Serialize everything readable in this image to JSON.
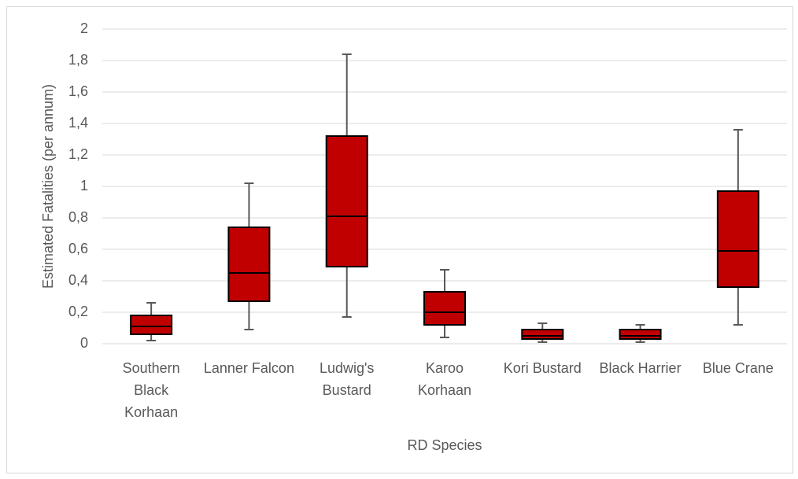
{
  "chart_data": {
    "type": "box",
    "y_label": "Estimated Fatalities (per annum)",
    "x_label": "RD Species",
    "categories": [
      "Southern Black Korhaan",
      "Lanner Falcon",
      "Ludwig's Bustard",
      "Karoo Korhaan",
      "Kori Bustard",
      "Black Harrier",
      "Blue Crane"
    ],
    "boxes": [
      {
        "min": 0.02,
        "q1": 0.06,
        "median": 0.11,
        "q3": 0.18,
        "max": 0.26
      },
      {
        "min": 0.09,
        "q1": 0.27,
        "median": 0.45,
        "q3": 0.74,
        "max": 1.02
      },
      {
        "min": 0.17,
        "q1": 0.49,
        "median": 0.81,
        "q3": 1.32,
        "max": 1.84
      },
      {
        "min": 0.04,
        "q1": 0.12,
        "median": 0.2,
        "q3": 0.33,
        "max": 0.47
      },
      {
        "min": 0.01,
        "q1": 0.03,
        "median": 0.05,
        "q3": 0.09,
        "max": 0.13
      },
      {
        "min": 0.01,
        "q1": 0.03,
        "median": 0.05,
        "q3": 0.09,
        "max": 0.12
      },
      {
        "min": 0.12,
        "q1": 0.36,
        "median": 0.59,
        "q3": 0.97,
        "max": 1.36
      }
    ],
    "color": "#c00000",
    "ylim": [
      0,
      2
    ],
    "yticks": [
      0,
      {
        "value": 0.2,
        "label": "0,2"
      },
      {
        "value": 0.4,
        "label": "0,4"
      },
      {
        "value": 0.6,
        "label": "0,6"
      },
      {
        "value": 0.8,
        "label": "0,8"
      },
      1,
      {
        "value": 1.2,
        "label": "1,2"
      },
      {
        "value": 1.4,
        "label": "1,4"
      },
      {
        "value": 1.6,
        "label": "1,6"
      },
      {
        "value": 1.8,
        "label": "1,8"
      },
      2
    ],
    "grid": true
  }
}
